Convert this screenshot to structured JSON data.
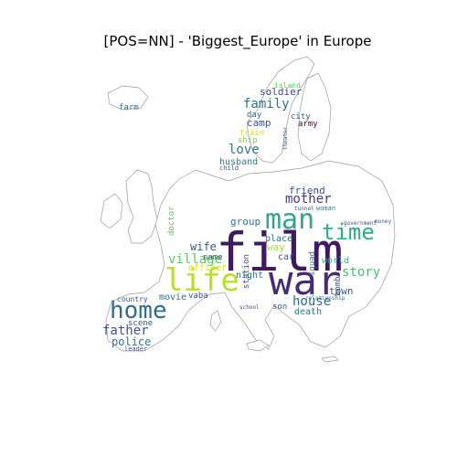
{
  "title": "[POS=NN] - 'Biggest_Europe' in Europe",
  "words": [
    {
      "text": "film",
      "color": "#3e1a5e"
    },
    {
      "text": "war",
      "color": "#472a78"
    },
    {
      "text": "man",
      "color": "#33a48a"
    },
    {
      "text": "life",
      "color": "#b9de2a"
    },
    {
      "text": "home",
      "color": "#2f6d8e"
    },
    {
      "text": "time",
      "color": "#2ab07f"
    },
    {
      "text": "mother",
      "color": "#453781"
    },
    {
      "text": "story",
      "color": "#46c06f"
    },
    {
      "text": "village",
      "color": "#5ec962"
    },
    {
      "text": "father",
      "color": "#3b528b"
    },
    {
      "text": "house",
      "color": "#31668e"
    },
    {
      "text": "family",
      "color": "#2c728e"
    },
    {
      "text": "love",
      "color": "#2a788e"
    },
    {
      "text": "wife",
      "color": "#3b528b"
    },
    {
      "text": "police",
      "color": "#2a788e"
    },
    {
      "text": "soldier",
      "color": "#414487"
    },
    {
      "text": "group",
      "color": "#2a788e"
    },
    {
      "text": "way",
      "color": "#a5db36"
    },
    {
      "text": "camp",
      "color": "#3b528b"
    },
    {
      "text": "town",
      "color": "#3b528b"
    },
    {
      "text": "friend",
      "color": "#3b528b"
    },
    {
      "text": "husband",
      "color": "#2a788e"
    },
    {
      "text": "officer",
      "color": "#dde318"
    },
    {
      "text": "night",
      "color": "#2c728e"
    },
    {
      "text": "place",
      "color": "#2c728e"
    },
    {
      "text": "world",
      "color": "#35b779"
    },
    {
      "text": "train",
      "color": "#dde318"
    },
    {
      "text": "ship",
      "color": "#7ad151"
    },
    {
      "text": "car",
      "color": "#3b528b"
    },
    {
      "text": "death",
      "color": "#2c728e"
    },
    {
      "text": "movie",
      "color": "#2c728e"
    },
    {
      "text": "scene",
      "color": "#3b528b"
    },
    {
      "text": "doctor",
      "color": "#5ec962"
    },
    {
      "text": "name",
      "color": "#3b528b"
    },
    {
      "text": "vaba",
      "color": "#3b528b"
    },
    {
      "text": "day",
      "color": "#2c728e"
    },
    {
      "text": "city",
      "color": "#3b528b"
    },
    {
      "text": "army",
      "color": "#440154"
    },
    {
      "text": "island",
      "color": "#5ec962"
    },
    {
      "text": "farm",
      "color": "#2c728e"
    },
    {
      "text": "son",
      "color": "#3b528b"
    },
    {
      "text": "station",
      "color": "#3b528b"
    },
    {
      "text": "bomb",
      "color": "#3b528b"
    },
    {
      "text": "squad",
      "color": "#2a788e"
    },
    {
      "text": "country",
      "color": "#3b528b"
    },
    {
      "text": "leader",
      "color": "#3b528b"
    },
    {
      "text": "woman",
      "color": "#2a788e"
    },
    {
      "text": "child",
      "color": "#3b528b"
    },
    {
      "text": "theater",
      "color": "#3b528b"
    },
    {
      "text": "relationship",
      "color": "#2c728e"
    },
    {
      "text": "school",
      "color": "#3b528b"
    },
    {
      "text": "tunnel",
      "color": "#3b528b"
    },
    {
      "text": "government",
      "color": "#3b528b"
    },
    {
      "text": "money",
      "color": "#3b528b"
    }
  ]
}
